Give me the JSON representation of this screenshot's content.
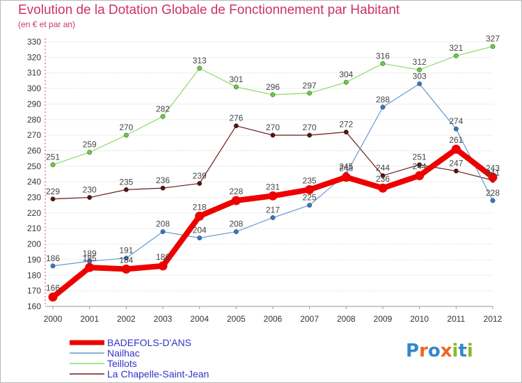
{
  "header": {
    "title": "Evolution de la Dotation Globale de Fonctionnement par Habitant",
    "subtitle": "(en € et par an)"
  },
  "logo": {
    "text": "Proxiti",
    "letters": [
      "P",
      "r",
      "o",
      "x",
      "i",
      "t",
      "i"
    ],
    "colors": [
      "#3388cc",
      "#ee6622",
      "#3388cc",
      "#ee6622",
      "#88bb22",
      "#3388cc",
      "#88bb22"
    ]
  },
  "chart_data": {
    "type": "line",
    "x": [
      "2000",
      "2001",
      "2002",
      "2003",
      "2004",
      "2005",
      "2006",
      "2007",
      "2008",
      "2009",
      "2010",
      "2011",
      "2012"
    ],
    "yticks": [
      160,
      170,
      180,
      190,
      200,
      210,
      220,
      230,
      240,
      250,
      260,
      270,
      280,
      290,
      300,
      310,
      320,
      330
    ],
    "ylim": [
      160,
      330
    ],
    "grid": "horizontal",
    "legend_position": "bottom-left",
    "series": [
      {
        "name": "La Chapelle-Saint-Jean",
        "color": "#6b1a1a",
        "dot": "#5a1010",
        "width": 1.2,
        "radius": 3.2,
        "values": [
          229,
          230,
          235,
          236,
          239,
          276,
          270,
          270,
          272,
          244,
          251,
          247,
          241
        ]
      },
      {
        "name": "Teillots",
        "color": "#88dd66",
        "dot": "#66cc44",
        "width": 1.2,
        "radius": 3.2,
        "values": [
          251,
          259,
          270,
          282,
          313,
          301,
          296,
          297,
          304,
          316,
          312,
          321,
          327
        ]
      },
      {
        "name": "Nailhac",
        "color": "#6699cc",
        "dot": "#3377cc",
        "width": 1.2,
        "radius": 3.2,
        "values": [
          186,
          189,
          191,
          208,
          204,
          208,
          217,
          225,
          245,
          288,
          303,
          274,
          228
        ]
      },
      {
        "name": "BADEFOLS-D'ANS",
        "color": "#ee0000",
        "dot": "#ee0000",
        "width": 8,
        "radius": 6.5,
        "values": [
          166,
          185,
          184,
          186,
          218,
          228,
          231,
          235,
          243,
          236,
          244,
          261,
          243
        ]
      }
    ]
  }
}
